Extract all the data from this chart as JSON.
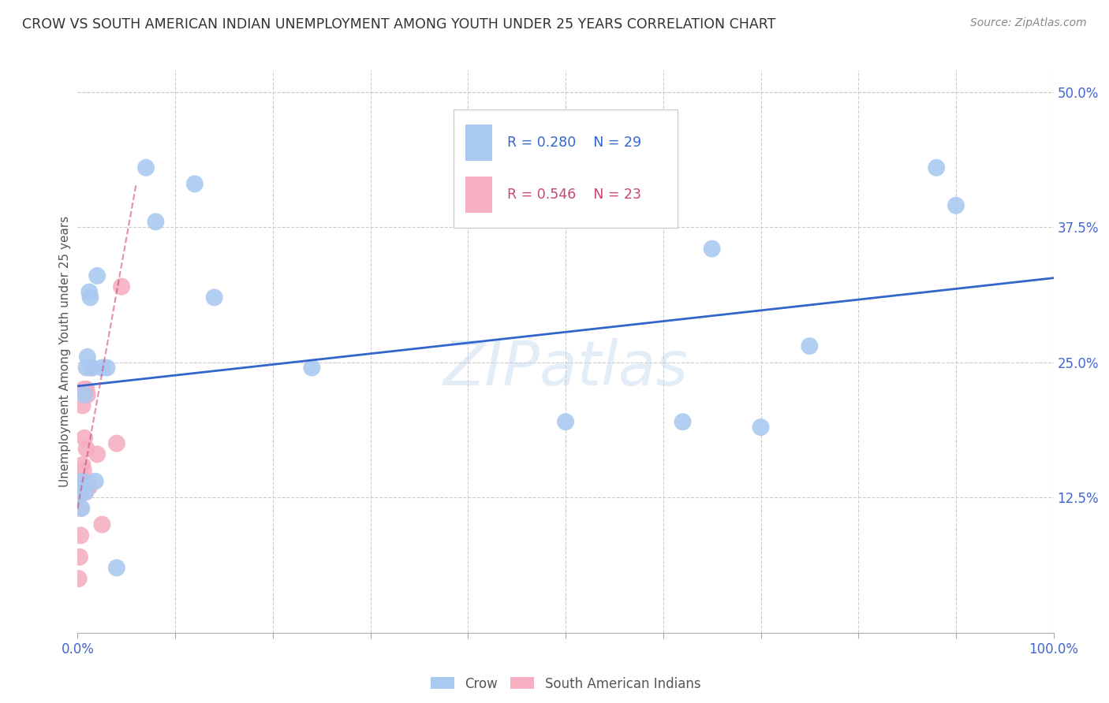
{
  "title": "CROW VS SOUTH AMERICAN INDIAN UNEMPLOYMENT AMONG YOUTH UNDER 25 YEARS CORRELATION CHART",
  "source": "Source: ZipAtlas.com",
  "ylabel": "Unemployment Among Youth under 25 years",
  "watermark": "ZIPatlas",
  "crow_label": "Crow",
  "sa_label": "South American Indians",
  "crow_R": "R = 0.280",
  "crow_N": "N = 29",
  "sa_R": "R = 0.546",
  "sa_N": "N = 23",
  "crow_color": "#aac9f0",
  "sa_color": "#f5afc0",
  "crow_line_color": "#3366cc",
  "sa_line_color": "#cc4477",
  "xlim": [
    0.0,
    1.0
  ],
  "ylim": [
    0.0,
    0.52
  ],
  "crow_x": [
    0.002,
    0.003,
    0.004,
    0.005,
    0.006,
    0.007,
    0.008,
    0.009,
    0.01,
    0.012,
    0.013,
    0.015,
    0.018,
    0.02,
    0.025,
    0.03,
    0.04,
    0.07,
    0.08,
    0.12,
    0.14,
    0.24,
    0.5,
    0.62,
    0.65,
    0.7,
    0.75,
    0.88,
    0.9
  ],
  "crow_y": [
    0.135,
    0.13,
    0.115,
    0.14,
    0.135,
    0.22,
    0.13,
    0.245,
    0.255,
    0.315,
    0.31,
    0.245,
    0.14,
    0.33,
    0.245,
    0.245,
    0.06,
    0.43,
    0.38,
    0.415,
    0.31,
    0.245,
    0.195,
    0.195,
    0.355,
    0.19,
    0.265,
    0.43,
    0.395
  ],
  "sa_x": [
    0.001,
    0.002,
    0.003,
    0.003,
    0.004,
    0.005,
    0.005,
    0.006,
    0.006,
    0.007,
    0.008,
    0.008,
    0.009,
    0.009,
    0.01,
    0.01,
    0.011,
    0.012,
    0.013,
    0.02,
    0.025,
    0.04,
    0.045
  ],
  "sa_y": [
    0.05,
    0.07,
    0.09,
    0.115,
    0.14,
    0.155,
    0.21,
    0.15,
    0.225,
    0.18,
    0.13,
    0.225,
    0.17,
    0.225,
    0.14,
    0.22,
    0.135,
    0.135,
    0.245,
    0.165,
    0.1,
    0.175,
    0.32
  ],
  "crow_line_x": [
    0.0,
    1.0
  ],
  "crow_line_y": [
    0.228,
    0.328
  ],
  "sa_line_x": [
    0.0,
    0.06
  ],
  "sa_line_y": [
    0.115,
    0.415
  ],
  "grid_color": "#cccccc",
  "background_color": "#ffffff",
  "title_color": "#333333",
  "axis_tick_color": "#4466cc",
  "ylabel_color": "#555555",
  "source_color": "#888888"
}
